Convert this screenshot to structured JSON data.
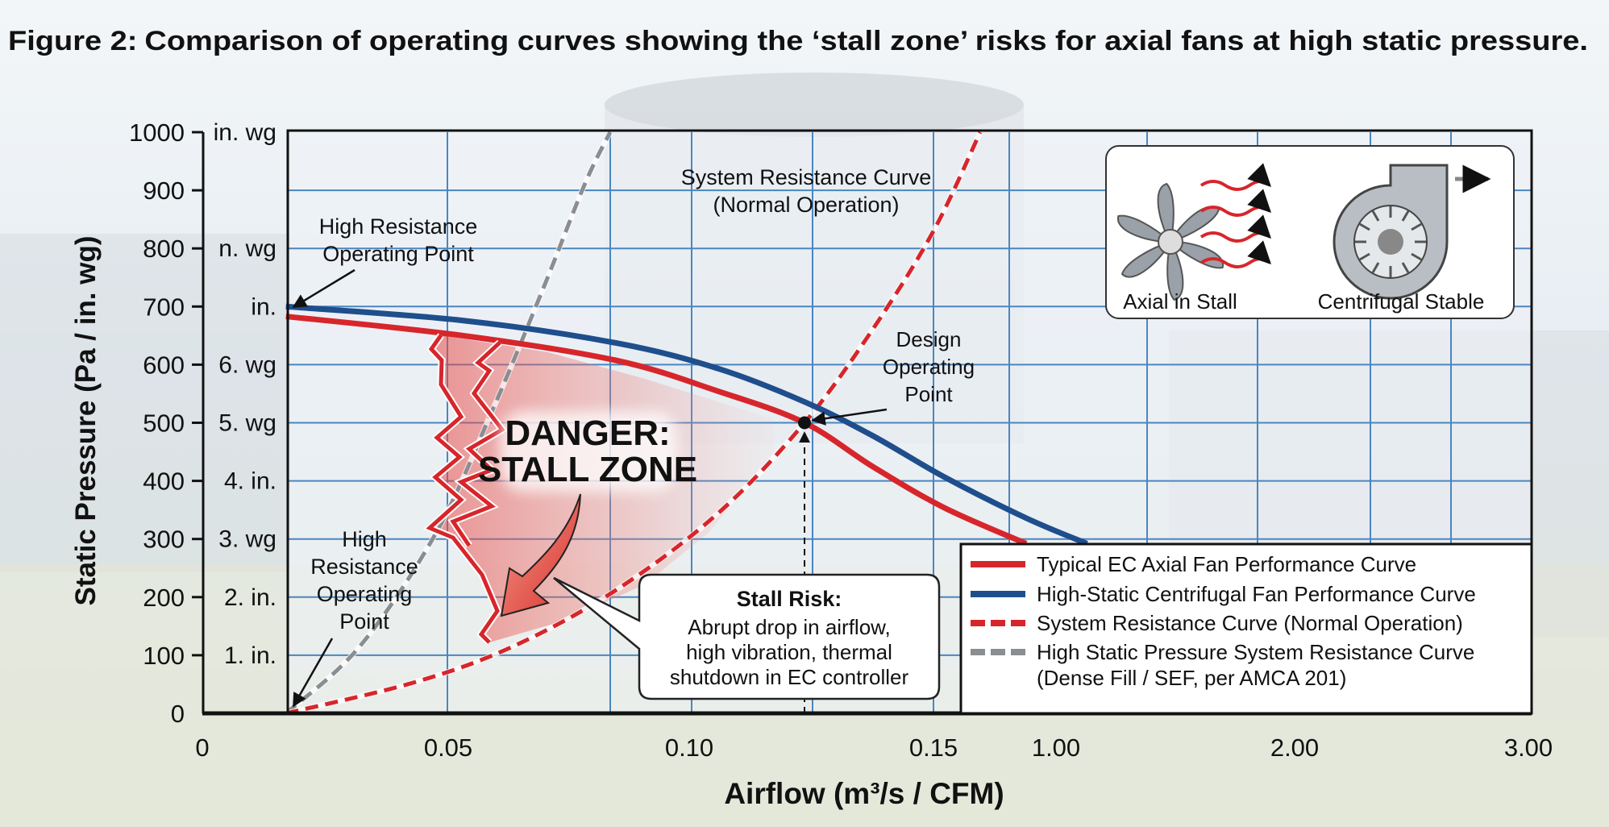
{
  "chart_data": {
    "type": "line",
    "title_prefix": "Figure 2:",
    "title": "Comparison of operating curves showing the ‘stall zone’ risks for axial fans at high static pressure.",
    "xlabel": "Airflow (m³/s / CFM)",
    "ylabel": "Static Pressure (Pa / in. wg)",
    "x_ticks": [
      "0",
      "0.05",
      "0.10",
      "0.15",
      "1.00",
      "2.00",
      "3.00"
    ],
    "x_tick_values": [
      0,
      0.05,
      0.1,
      0.15,
      1.0,
      2.0,
      3.0
    ],
    "ylim": [
      0,
      1000
    ],
    "y_ticks": [
      "0",
      "100",
      "200",
      "300",
      "400",
      "500",
      "600",
      "700",
      "800",
      "900",
      "1000"
    ],
    "y_secondary_ticks": [
      "",
      "1. in.",
      "2. in.",
      "3. wg",
      "4. in.",
      "5. wg",
      "6. wg",
      "in.",
      "n. wg",
      "",
      "in. wg"
    ],
    "grid": true,
    "legend_position": "bottom-right",
    "series": [
      {
        "name": "Typical EC Axial Fan Performance Curve",
        "color": "#d7262b",
        "style": "solid",
        "x": [
          0.017,
          0.053,
          0.085,
          0.106,
          0.1236,
          0.1375,
          0.223,
          0.793
        ],
        "y": [
          683,
          650,
          607,
          554,
          500,
          425,
          354,
          292
        ]
      },
      {
        "name": "High-Static Centrifugal Fan Performance Curve",
        "color": "#1f4e8c",
        "style": "solid",
        "x": [
          0.017,
          0.053,
          0.085,
          0.106,
          0.1236,
          0.1375,
          0.223,
          0.793,
          1.13
        ],
        "y": [
          700,
          676,
          637,
          593,
          536,
          478,
          407,
          336,
          292
        ]
      },
      {
        "name": "System Resistance Curve (Normal Operation)",
        "color": "#d7262b",
        "style": "dashed",
        "x": [
          0.017,
          0.043,
          0.0634,
          0.0848,
          0.106,
          0.1236,
          0.1375,
          0.15,
          0.474
        ],
        "y": [
          0,
          53,
          115,
          212,
          345,
          500,
          660,
          830,
          1000
        ]
      },
      {
        "name": "High Static Pressure System Resistance Curve",
        "name_line2": "(Dense Fill / SEF, per AMCA 201)",
        "color": "#8a8d91",
        "style": "dashed",
        "x": [
          0.017,
          0.032,
          0.0475,
          0.0592,
          0.0699,
          0.0784,
          0.0836
        ],
        "y": [
          0,
          115,
          310,
          522,
          735,
          912,
          1000
        ]
      }
    ],
    "design_point": {
      "x": 0.1236,
      "y": 500
    },
    "annotations": {
      "system_curve_label": [
        "System Resistance Curve",
        "(Normal Operation)"
      ],
      "high_resistance_top": [
        "High Resistance",
        "Operating Point"
      ],
      "high_resistance_bottom": [
        "High",
        "Resistance",
        "Operating",
        "Point"
      ],
      "design_point_label": [
        "Design",
        "Operating",
        "Point"
      ],
      "danger": [
        "DANGER:",
        "STALL ZONE"
      ],
      "stall_risk_title": "Stall Risk:",
      "stall_risk_body": [
        "Abrupt drop in airflow,",
        "high vibration, thermal",
        "shutdown in EC controller"
      ]
    },
    "inset": {
      "axial_label": "Axial in Stall",
      "centrifugal_label": "Centrifugal Stable",
      "axial_icon": "axial-fan-icon",
      "centrifugal_icon": "centrifugal-fan-icon"
    },
    "colors": {
      "axial": "#d7262b",
      "centrifugal": "#1f4e8c",
      "grid": "#4a86c0",
      "high_static": "#8a8d91"
    }
  }
}
